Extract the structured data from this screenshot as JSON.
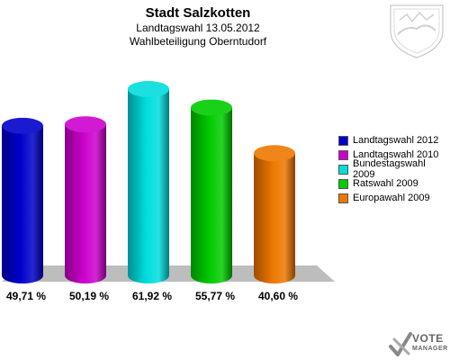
{
  "chart_data": {
    "type": "bar",
    "title": "Stadt Salzkotten",
    "subtitle_lines": [
      "Landtagswahl 13.05.2012",
      "Wahlbeteiligung Oberntudorf"
    ],
    "categories": [
      "Landtagswahl 2012",
      "Landtagswahl 2010",
      "Bundestagswahl 2009",
      "Ratswahl 2009",
      "Europawahl 2009"
    ],
    "values": [
      49.71,
      50.19,
      61.92,
      55.77,
      40.6
    ],
    "value_labels": [
      "49,71 %",
      "50,19 %",
      "61,92 %",
      "55,77 %",
      "40,60 %"
    ],
    "colors": [
      "#0000cc",
      "#cc00cc",
      "#00dddd",
      "#00cc00",
      "#ee7700"
    ],
    "ylim": [
      0,
      70
    ],
    "legend_position": "right",
    "grid": false
  },
  "branding": {
    "vote_word": "VOTE",
    "vote_sub": "MANAGER"
  }
}
